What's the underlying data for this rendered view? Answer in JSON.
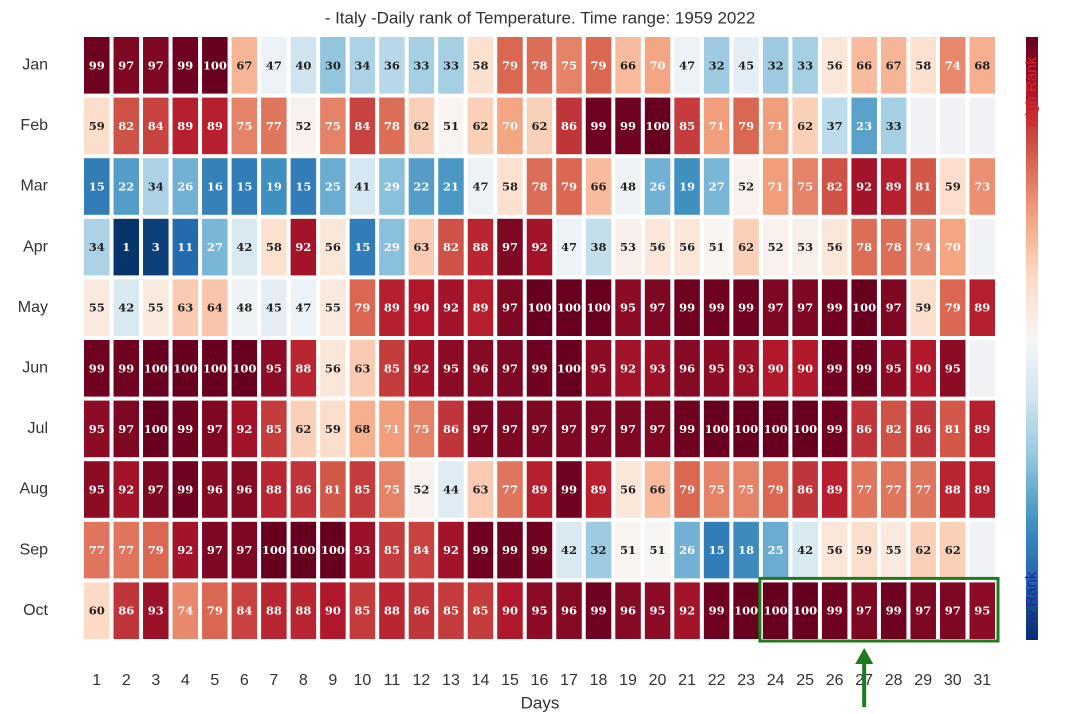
{
  "chart_data": {
    "type": "heatmap",
    "title": "- Italy -Daily rank of Temperature. Time range: 1959 2022",
    "x_label": "Days",
    "x_categories": [
      1,
      2,
      3,
      4,
      5,
      6,
      7,
      8,
      9,
      10,
      11,
      12,
      13,
      14,
      15,
      16,
      17,
      18,
      19,
      20,
      21,
      22,
      23,
      24,
      25,
      26,
      27,
      28,
      29,
      30,
      31
    ],
    "rows": [
      {
        "name": "Jan",
        "values": [
          99,
          97,
          97,
          99,
          100,
          67,
          47,
          40,
          30,
          34,
          36,
          33,
          33,
          58,
          79,
          78,
          75,
          79,
          66,
          70,
          47,
          32,
          45,
          32,
          33,
          56,
          66,
          67,
          58,
          74,
          68
        ]
      },
      {
        "name": "Feb",
        "values": [
          59,
          82,
          84,
          89,
          89,
          75,
          77,
          52,
          75,
          84,
          78,
          62,
          51,
          62,
          70,
          62,
          86,
          99,
          99,
          100,
          85,
          71,
          79,
          71,
          62,
          37,
          23,
          33,
          null,
          null,
          null
        ]
      },
      {
        "name": "Mar",
        "values": [
          15,
          22,
          34,
          26,
          16,
          15,
          19,
          15,
          25,
          41,
          29,
          22,
          21,
          47,
          58,
          78,
          79,
          66,
          48,
          26,
          19,
          27,
          52,
          71,
          75,
          82,
          92,
          89,
          81,
          59,
          73
        ]
      },
      {
        "name": "Apr",
        "values": [
          34,
          1,
          3,
          11,
          27,
          42,
          58,
          92,
          56,
          15,
          29,
          63,
          82,
          88,
          97,
          92,
          47,
          38,
          53,
          56,
          56,
          51,
          62,
          52,
          53,
          56,
          78,
          78,
          74,
          70,
          null
        ]
      },
      {
        "name": "May",
        "values": [
          55,
          42,
          55,
          63,
          64,
          48,
          45,
          47,
          55,
          79,
          89,
          90,
          92,
          89,
          97,
          100,
          100,
          100,
          95,
          97,
          99,
          99,
          99,
          97,
          97,
          99,
          100,
          97,
          59,
          79,
          89
        ]
      },
      {
        "name": "Jun",
        "values": [
          99,
          99,
          100,
          100,
          100,
          100,
          95,
          88,
          56,
          63,
          85,
          92,
          95,
          96,
          97,
          99,
          100,
          95,
          92,
          93,
          96,
          95,
          93,
          90,
          90,
          99,
          99,
          95,
          90,
          95,
          null
        ]
      },
      {
        "name": "Jul",
        "values": [
          95,
          97,
          100,
          99,
          97,
          92,
          85,
          62,
          59,
          68,
          71,
          75,
          86,
          97,
          97,
          97,
          97,
          97,
          97,
          97,
          99,
          100,
          100,
          100,
          100,
          99,
          86,
          82,
          86,
          81,
          89
        ]
      },
      {
        "name": "Aug",
        "values": [
          95,
          92,
          97,
          99,
          96,
          96,
          88,
          86,
          81,
          85,
          75,
          52,
          44,
          63,
          77,
          89,
          99,
          89,
          56,
          66,
          79,
          75,
          75,
          79,
          86,
          89,
          77,
          77,
          77,
          88,
          89
        ]
      },
      {
        "name": "Sep",
        "values": [
          77,
          77,
          79,
          92,
          97,
          97,
          100,
          100,
          100,
          93,
          85,
          84,
          92,
          99,
          99,
          99,
          42,
          32,
          51,
          51,
          26,
          15,
          18,
          25,
          42,
          56,
          59,
          55,
          62,
          62,
          null
        ]
      },
      {
        "name": "Oct",
        "values": [
          60,
          86,
          93,
          74,
          79,
          84,
          88,
          88,
          90,
          85,
          88,
          86,
          85,
          85,
          90,
          95,
          96,
          99,
          96,
          95,
          92,
          99,
          100,
          100,
          100,
          99,
          97,
          99,
          97,
          97,
          95
        ]
      }
    ],
    "zlim": [
      0,
      100
    ],
    "colormap": [
      "#053061",
      "#2166ac",
      "#4393c3",
      "#92c5de",
      "#d1e5f0",
      "#f7f7f7",
      "#fddbc7",
      "#f4a582",
      "#d6604d",
      "#b2182b",
      "#67001f"
    ],
    "colorbar_high_label": "High Rank",
    "colorbar_low_label": "Low Rank",
    "highlight": {
      "row": 9,
      "days": [
        24,
        31
      ],
      "color": "#1d7a1d"
    },
    "arrow_day": 27
  }
}
